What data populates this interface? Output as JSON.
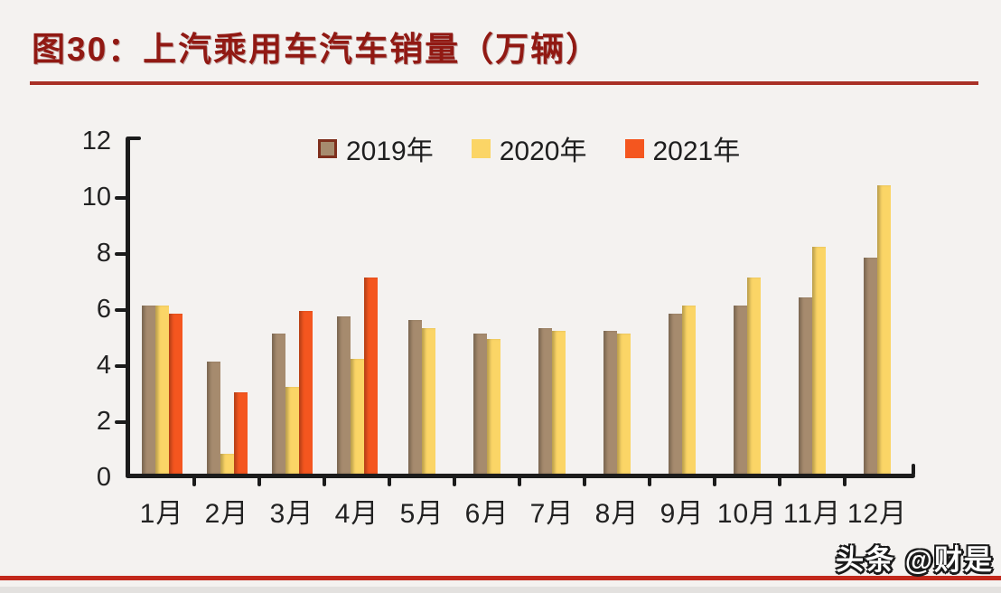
{
  "page": {
    "background": "#F4F2F0",
    "top_rule_color": "#A93026",
    "bottom_rule_color": "#C2281B"
  },
  "header": {
    "title": "图30：上汽乘用车汽车销量（万辆）",
    "title_color": "#911913"
  },
  "watermark": {
    "text": "头条 @财是"
  },
  "chart_data": {
    "type": "bar",
    "title": "上汽乘用车汽车销量（万辆）",
    "figure_label": "图30",
    "categories": [
      "1月",
      "2月",
      "3月",
      "4月",
      "5月",
      "6月",
      "7月",
      "8月",
      "9月",
      "10月",
      "11月",
      "12月"
    ],
    "series": [
      {
        "name": "2019年",
        "color": "#A68B6E",
        "values": [
          6.0,
          4.0,
          5.0,
          5.6,
          5.5,
          5.0,
          5.2,
          5.1,
          5.7,
          6.0,
          6.3,
          7.7
        ]
      },
      {
        "name": "2020年",
        "color": "#FBD566",
        "values": [
          6.0,
          0.7,
          3.1,
          4.1,
          5.2,
          4.8,
          5.1,
          5.0,
          6.0,
          7.0,
          8.1,
          10.3
        ]
      },
      {
        "name": "2021年",
        "color": "#F4561F",
        "values": [
          5.7,
          2.9,
          5.8,
          7.0,
          null,
          null,
          null,
          null,
          null,
          null,
          null,
          null
        ]
      }
    ],
    "ylim": [
      0,
      12
    ],
    "yticks": [
      0,
      2,
      4,
      6,
      8,
      10,
      12
    ],
    "ylabel": "",
    "xlabel": "",
    "grid": false,
    "legend_position": "top-center",
    "legend_marker_2019_border": "#7E2F1D",
    "axis_color": "#1B1B1B"
  }
}
